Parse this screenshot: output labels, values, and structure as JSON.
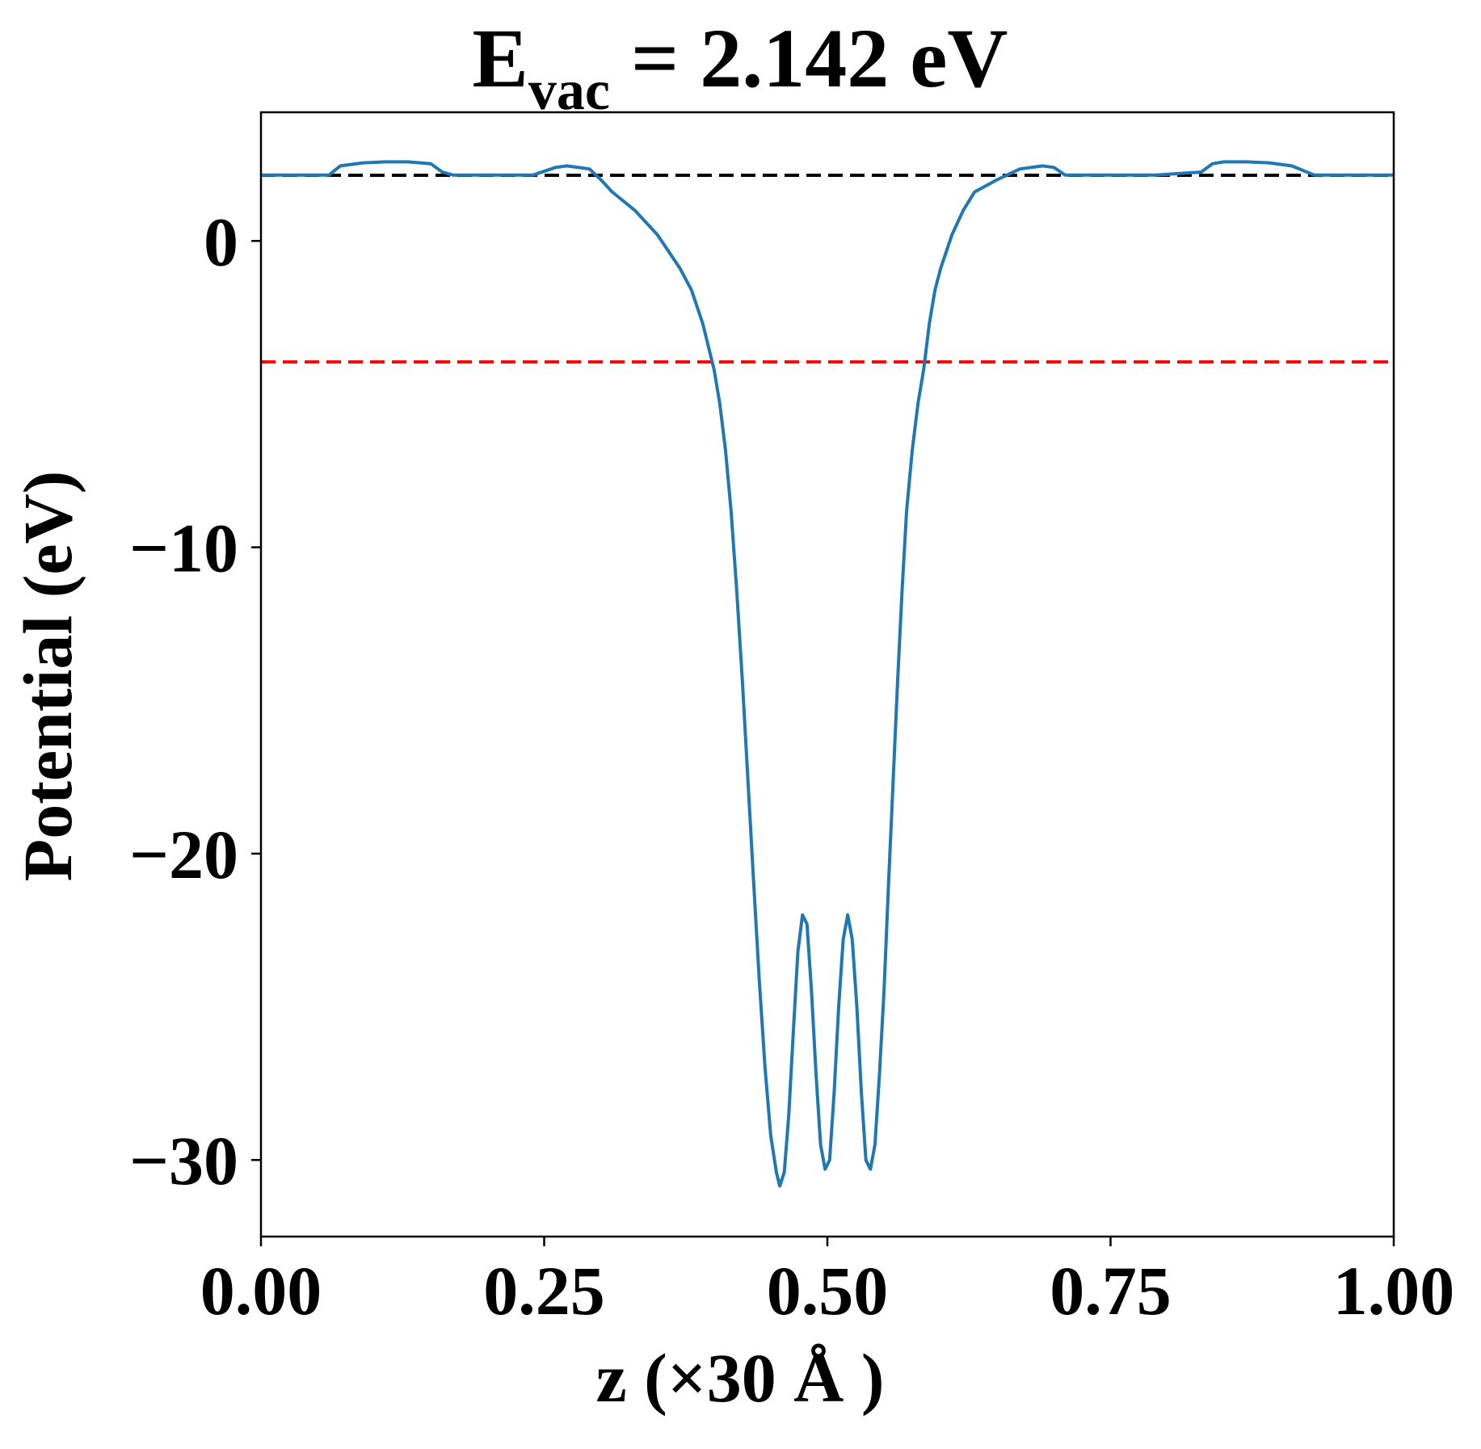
{
  "chart_data": {
    "type": "line",
    "title": {
      "main": "E",
      "subscript": "vac",
      "rest": " = 2.142 eV"
    },
    "xlabel": "z (×30 Å )",
    "ylabel": "Potential (eV)",
    "xlim": [
      0.0,
      1.0
    ],
    "ylim": [
      -32.5,
      4.2
    ],
    "x_ticks": [
      {
        "value": 0.0,
        "label": "0.00"
      },
      {
        "value": 0.25,
        "label": "0.25"
      },
      {
        "value": 0.5,
        "label": "0.50"
      },
      {
        "value": 0.75,
        "label": "0.75"
      },
      {
        "value": 1.0,
        "label": "1.00"
      }
    ],
    "y_ticks": [
      {
        "value": 0,
        "label": "0"
      },
      {
        "value": -10,
        "label": "−10"
      },
      {
        "value": -20,
        "label": "−20"
      },
      {
        "value": -30,
        "label": "−30"
      }
    ],
    "grid": false,
    "reference_lines": [
      {
        "name": "vacuum level",
        "y": 2.142,
        "color": "#000000",
        "style": "dashed"
      },
      {
        "name": "fermi level",
        "y": -3.95,
        "color": "#ff0000",
        "style": "dashed"
      }
    ],
    "series": [
      {
        "color": "#1f77b4",
        "x": [
          0.0,
          0.02,
          0.06,
          0.07,
          0.09,
          0.11,
          0.13,
          0.15,
          0.16,
          0.17,
          0.2,
          0.24,
          0.26,
          0.27,
          0.29,
          0.3,
          0.31,
          0.33,
          0.35,
          0.37,
          0.38,
          0.39,
          0.4,
          0.405,
          0.41,
          0.415,
          0.42,
          0.425,
          0.43,
          0.435,
          0.44,
          0.445,
          0.45,
          0.455,
          0.458,
          0.462,
          0.466,
          0.47,
          0.474,
          0.478,
          0.482,
          0.486,
          0.49,
          0.494,
          0.498,
          0.502,
          0.506,
          0.51,
          0.514,
          0.518,
          0.522,
          0.526,
          0.53,
          0.534,
          0.538,
          0.542,
          0.546,
          0.55,
          0.554,
          0.558,
          0.562,
          0.566,
          0.57,
          0.575,
          0.58,
          0.585,
          0.59,
          0.595,
          0.6,
          0.61,
          0.62,
          0.63,
          0.65,
          0.67,
          0.69,
          0.7,
          0.71,
          0.73,
          0.74,
          0.75,
          0.79,
          0.83,
          0.84,
          0.85,
          0.87,
          0.89,
          0.91,
          0.93,
          0.94,
          0.96,
          0.98,
          1.0
        ],
        "y": [
          2.15,
          2.15,
          2.15,
          2.45,
          2.55,
          2.58,
          2.58,
          2.52,
          2.25,
          2.15,
          2.15,
          2.15,
          2.4,
          2.45,
          2.35,
          2.0,
          1.6,
          1.0,
          0.2,
          -0.9,
          -1.6,
          -2.7,
          -4.2,
          -5.3,
          -6.8,
          -8.8,
          -11.4,
          -14.4,
          -17.7,
          -21.0,
          -24.2,
          -27.0,
          -29.2,
          -30.4,
          -30.85,
          -30.4,
          -28.5,
          -25.8,
          -23.2,
          -22.0,
          -22.3,
          -24.5,
          -27.2,
          -29.5,
          -30.3,
          -30.0,
          -27.8,
          -25.0,
          -22.8,
          -22.0,
          -22.8,
          -25.0,
          -27.8,
          -30.0,
          -30.3,
          -29.5,
          -27.2,
          -24.5,
          -21.0,
          -17.7,
          -14.4,
          -11.4,
          -8.8,
          -6.8,
          -5.3,
          -4.2,
          -2.7,
          -1.6,
          -0.9,
          0.2,
          1.0,
          1.6,
          2.0,
          2.35,
          2.45,
          2.4,
          2.15,
          2.15,
          2.15,
          2.15,
          2.15,
          2.25,
          2.52,
          2.58,
          2.58,
          2.55,
          2.45,
          2.15,
          2.15,
          2.15,
          2.15,
          2.15
        ]
      }
    ]
  }
}
